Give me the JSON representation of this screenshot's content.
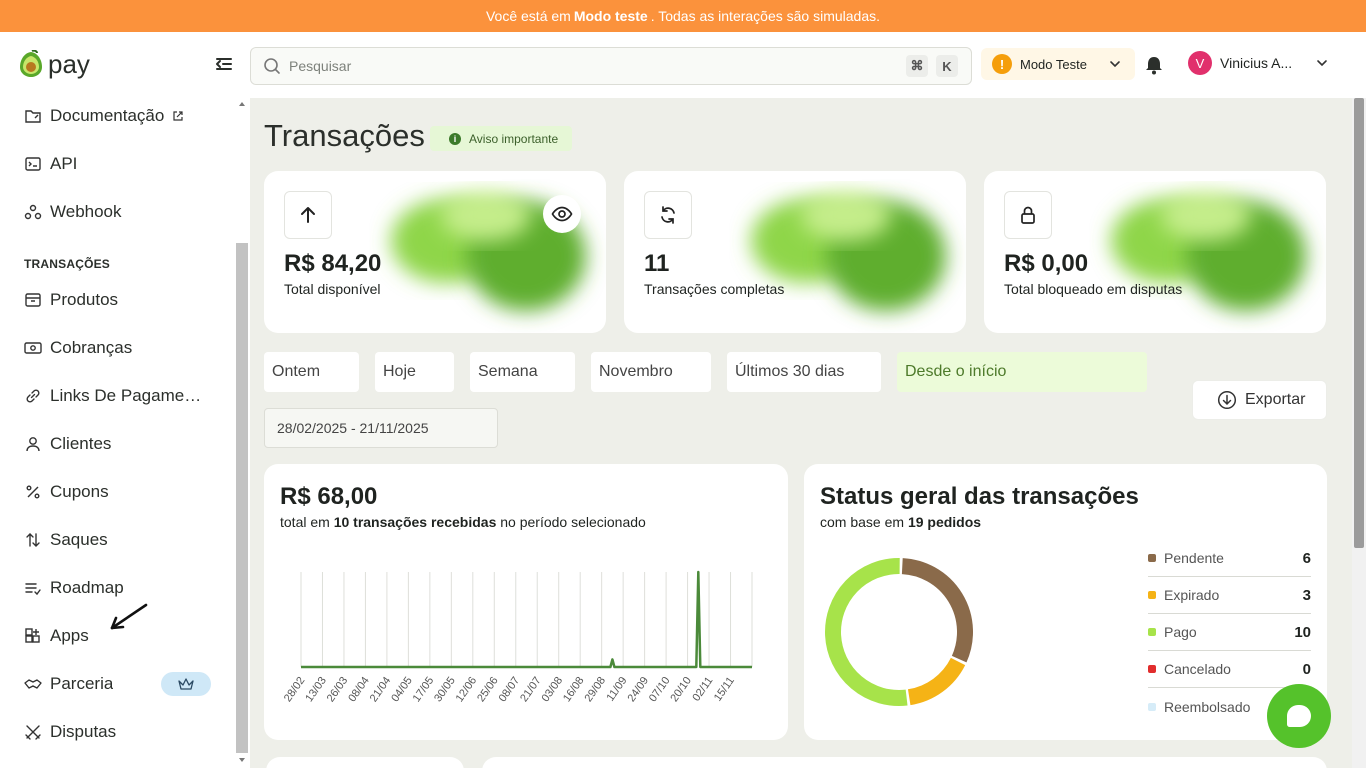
{
  "banner": {
    "prefix": "Você está em",
    "mode": "Modo teste",
    "suffix": ". Todas as interações são simuladas."
  },
  "header": {
    "logo_text": "pay",
    "search_placeholder": "Pesquisar",
    "shortcut_keys": [
      "⌘",
      "K"
    ],
    "mode_label": "Modo Teste",
    "user_initial": "V",
    "user_name": "Vinicius A..."
  },
  "sidebar": {
    "items_top": [
      {
        "label": "Documentação",
        "icon": "folder-link-icon"
      },
      {
        "label": "API",
        "icon": "terminal-icon"
      },
      {
        "label": "Webhook",
        "icon": "webhook-icon"
      }
    ],
    "section_title": "TRANSAÇÕES",
    "items": [
      {
        "label": "Produtos",
        "icon": "box-icon"
      },
      {
        "label": "Cobranças",
        "icon": "banknote-icon"
      },
      {
        "label": "Links De Pagamentos",
        "icon": "link-icon"
      },
      {
        "label": "Clientes",
        "icon": "user-icon"
      },
      {
        "label": "Cupons",
        "icon": "percent-icon"
      },
      {
        "label": "Saques",
        "icon": "arrows-updown-icon"
      },
      {
        "label": "Roadmap",
        "icon": "list-check-icon"
      },
      {
        "label": "Apps",
        "icon": "grid-plus-icon"
      },
      {
        "label": "Parceria",
        "icon": "handshake-icon"
      },
      {
        "label": "Disputas",
        "icon": "swords-icon"
      }
    ]
  },
  "page": {
    "title": "Transações",
    "notice": "Aviso importante"
  },
  "stats": [
    {
      "value": "R$ 84,20",
      "caption": "Total disponível",
      "icon": "arrow-up-icon"
    },
    {
      "value": "11",
      "caption": "Transações completas",
      "icon": "refresh-icon"
    },
    {
      "value": "R$ 0,00",
      "caption": "Total bloqueado em disputas",
      "icon": "lock-icon"
    }
  ],
  "filters": [
    "Ontem",
    "Hoje",
    "Semana",
    "Novembro",
    "Últimos 30 dias",
    "Desde o início"
  ],
  "active_filter": "Desde o início",
  "date_range": "28/02/2025 - 21/11/2025",
  "export_label": "Exportar",
  "revenue": {
    "total": "R$ 68,00",
    "sub_prefix": "total em",
    "sub_bold": "10 transações recebidas",
    "sub_suffix": "no período selecionado"
  },
  "status_card": {
    "title": "Status geral das transações",
    "sub_prefix": "com base em",
    "sub_bold": "19 pedidos"
  },
  "colors": {
    "accent": "#55c22b",
    "banner": "#fb923c",
    "line": "#4b8a3a",
    "pendente": "#8a6a4a",
    "expirado": "#f5b316",
    "pago": "#a7e34a",
    "cancelado": "#e12d2d",
    "reembolsado": "#d6ecf8"
  },
  "chart_data": [
    {
      "type": "line",
      "title": "",
      "x": [
        "28/02",
        "13/03",
        "26/03",
        "08/04",
        "21/04",
        "04/05",
        "17/05",
        "30/05",
        "12/06",
        "25/06",
        "08/07",
        "21/07",
        "03/08",
        "16/08",
        "29/08",
        "11/09",
        "24/09",
        "07/10",
        "20/10",
        "02/11",
        "15/11"
      ],
      "series": [
        {
          "values": [
            0,
            0,
            0,
            0,
            0,
            0,
            0,
            0,
            0,
            0,
            0,
            0,
            0,
            0,
            8,
            0,
            0,
            0,
            100,
            0,
            0
          ]
        }
      ],
      "grid": true
    },
    {
      "type": "pie",
      "title": "Status geral das transações",
      "labels": [
        "Pendente",
        "Expirado",
        "Pago",
        "Cancelado",
        "Reembolsado"
      ],
      "values": [
        6,
        3,
        10,
        0,
        0
      ]
    }
  ]
}
